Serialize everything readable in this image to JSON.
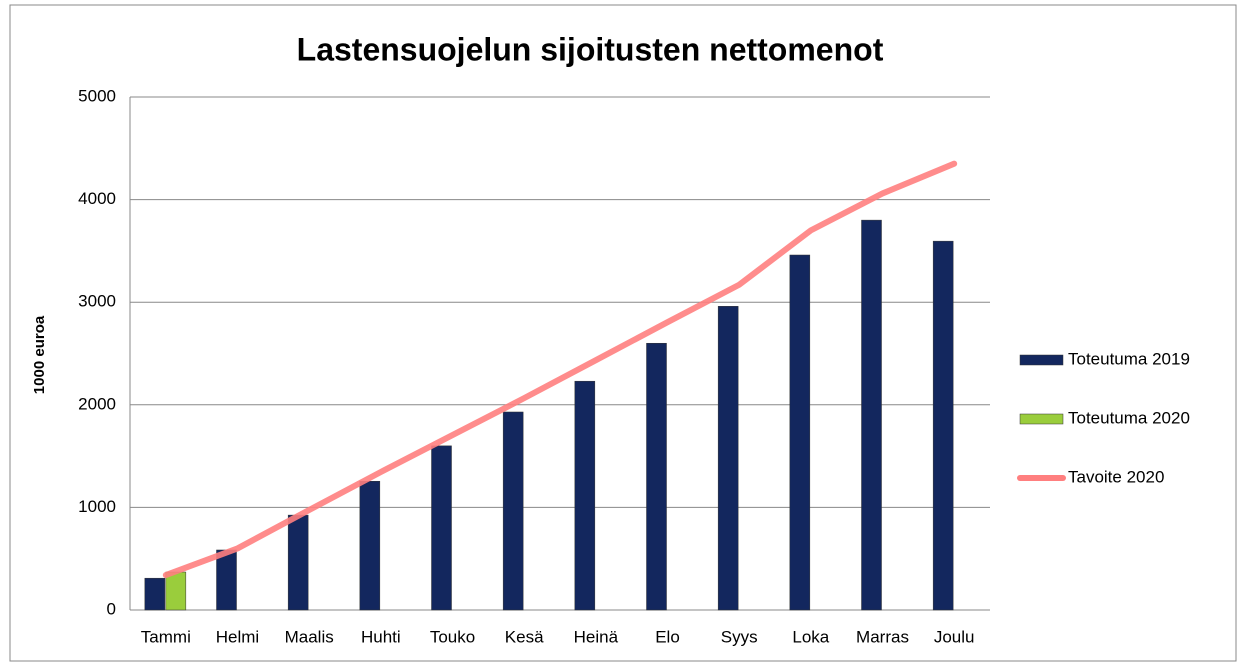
{
  "chart_data": {
    "type": "bar",
    "title": "Lastensuojelun sijoitusten nettomenot",
    "y_label": "1000 euroa",
    "categories": [
      "Tammi",
      "Helmi",
      "Maalis",
      "Huhti",
      "Touko",
      "Kesä",
      "Heinä",
      "Elo",
      "Syys",
      "Loka",
      "Marras",
      "Joulu"
    ],
    "series": [
      {
        "name": "Toteutuma 2019",
        "type": "bar",
        "color": "#13275e",
        "values": [
          310,
          585,
          925,
          1255,
          1600,
          1930,
          2230,
          2600,
          2960,
          3460,
          3800,
          3595
        ]
      },
      {
        "name": "Toteutuma 2020",
        "type": "bar",
        "color": "#9acd3c",
        "values": [
          370,
          null,
          null,
          null,
          null,
          null,
          null,
          null,
          null,
          null,
          null,
          null
        ]
      },
      {
        "name": "Tavoite 2020",
        "type": "line",
        "color": "#ff7f7f",
        "values": [
          340,
          600,
          975,
          1345,
          1705,
          2065,
          2435,
          2805,
          3170,
          3700,
          4060,
          4350
        ]
      }
    ],
    "ylim": [
      0,
      5000
    ],
    "yticks": [
      0,
      1000,
      2000,
      3000,
      4000,
      5000
    ],
    "grid": true,
    "legend": "right"
  }
}
